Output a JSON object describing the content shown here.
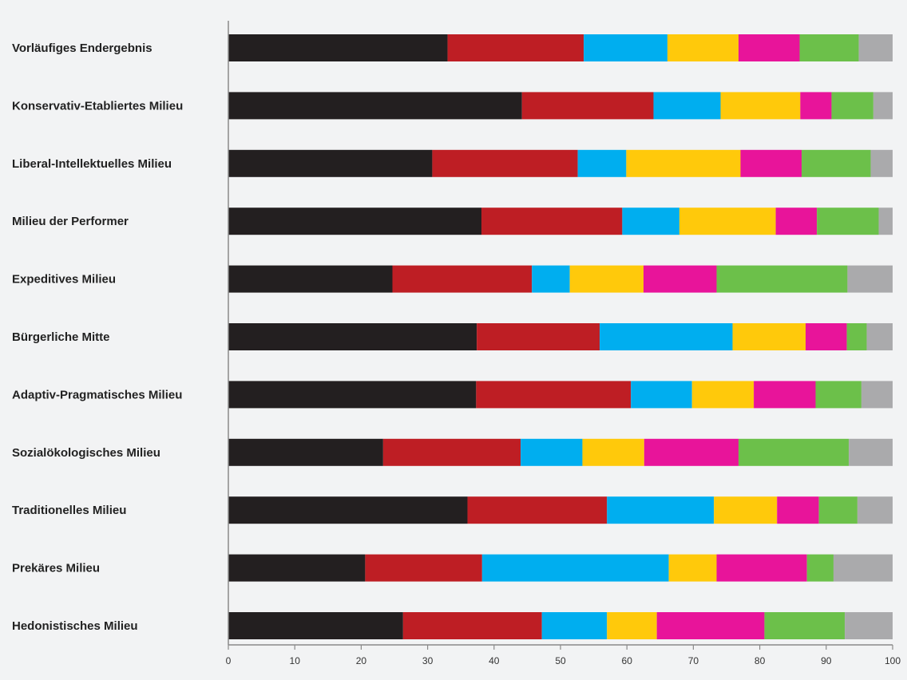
{
  "chart_data": {
    "type": "bar",
    "orientation": "horizontal",
    "stacked": true,
    "title": "",
    "xlabel": "",
    "ylabel": "",
    "xlim": [
      0,
      100
    ],
    "xticks": [
      "0",
      "10",
      "20",
      "30",
      "40",
      "50",
      "60",
      "70",
      "80",
      "90",
      "100"
    ],
    "grid": false,
    "legend": "none",
    "categories": [
      "Vorläufiges Endergebnis",
      "Konservativ-Etabliertes Milieu",
      "Liberal-Intellektuelles Milieu",
      "Milieu der Performer",
      "Expeditives Milieu",
      "Bürgerliche Mitte",
      "Adaptiv-Pragmatisches Milieu",
      "Sozialökologisches Milieu",
      "Traditionelles Milieu",
      "Prekäres Milieu",
      "Hedonistisches Milieu"
    ],
    "series": [
      {
        "color": "#231f20",
        "values": [
          33.0,
          44.2,
          30.7,
          38.1,
          24.7,
          37.4,
          37.3,
          23.3,
          36.0,
          20.6,
          26.3
        ]
      },
      {
        "color": "#be1e24",
        "values": [
          20.5,
          19.8,
          21.9,
          21.2,
          21.0,
          18.5,
          23.3,
          20.7,
          21.0,
          17.6,
          20.9
        ]
      },
      {
        "color": "#00aeef",
        "values": [
          12.6,
          10.1,
          7.3,
          8.6,
          5.7,
          20.0,
          9.2,
          9.3,
          16.1,
          28.1,
          9.8
        ]
      },
      {
        "color": "#ffc90b",
        "values": [
          10.7,
          12.0,
          17.2,
          14.5,
          11.1,
          11.0,
          9.3,
          9.3,
          9.5,
          7.2,
          7.5
        ]
      },
      {
        "color": "#e8149a",
        "values": [
          9.2,
          4.7,
          9.2,
          6.2,
          11.0,
          6.2,
          9.3,
          14.2,
          6.3,
          13.6,
          16.2
        ]
      },
      {
        "color": "#6cc04a",
        "values": [
          8.9,
          6.3,
          10.4,
          9.3,
          19.7,
          3.0,
          6.9,
          16.6,
          5.8,
          4.0,
          12.1
        ]
      },
      {
        "color": "#aaaaac",
        "values": [
          5.1,
          2.9,
          3.3,
          2.1,
          6.8,
          3.9,
          4.7,
          6.6,
          5.3,
          8.9,
          7.2
        ]
      }
    ]
  }
}
